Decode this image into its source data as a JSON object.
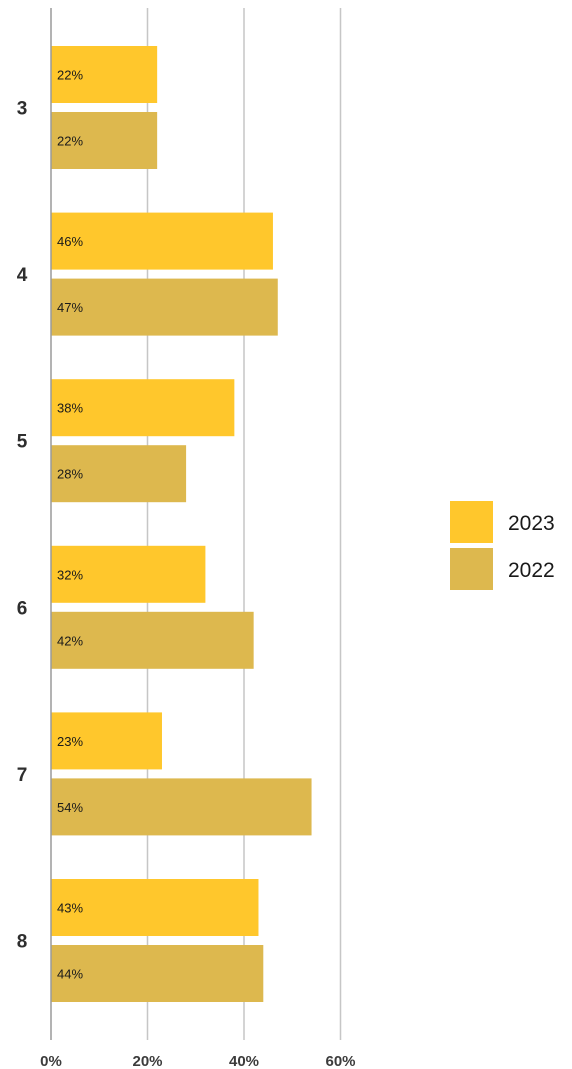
{
  "chart_data": {
    "type": "bar",
    "orientation": "horizontal",
    "categories": [
      "3",
      "4",
      "5",
      "6",
      "7",
      "8"
    ],
    "series": [
      {
        "name": "2023",
        "color": "#FFC72C",
        "values": [
          22,
          46,
          38,
          32,
          23,
          43
        ],
        "labels": [
          "22%",
          "46%",
          "38%",
          "32%",
          "23%",
          "43%"
        ]
      },
      {
        "name": "2022",
        "color": "#DDB84E",
        "values": [
          22,
          47,
          28,
          42,
          54,
          44
        ],
        "labels": [
          "22%",
          "47%",
          "28%",
          "42%",
          "54%",
          "44%"
        ]
      }
    ],
    "x_ticks": [
      0,
      20,
      40,
      60
    ],
    "x_tick_labels": [
      "0%",
      "20%",
      "40%",
      "60%"
    ],
    "xlim": [
      0,
      60
    ],
    "grid": true,
    "legend_position": "right",
    "title": "",
    "xlabel": "",
    "ylabel": ""
  }
}
